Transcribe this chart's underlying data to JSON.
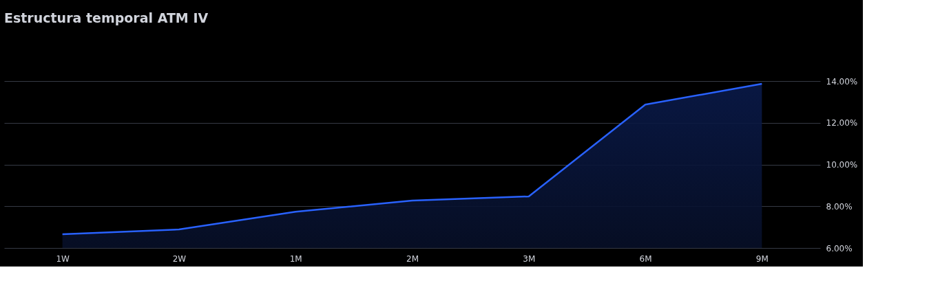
{
  "chart_data": {
    "type": "area",
    "title": "Estructura temporal ATM IV",
    "categories": [
      "1W",
      "2W",
      "1M",
      "2M",
      "3M",
      "6M",
      "9M"
    ],
    "series": [
      {
        "color": "#2962ff",
        "values": [
          6.66,
          6.89,
          7.74,
          8.27,
          8.47,
          12.87,
          13.87
        ]
      }
    ],
    "ylim": [
      6,
      14
    ],
    "yticks": [
      {
        "value": 6,
        "label": "6.00%"
      },
      {
        "value": 8,
        "label": "8.00%"
      },
      {
        "value": 10,
        "label": "10.00%"
      },
      {
        "value": 12,
        "label": "12.00%"
      },
      {
        "value": 14,
        "label": "14.00%"
      }
    ],
    "grid": "y"
  }
}
